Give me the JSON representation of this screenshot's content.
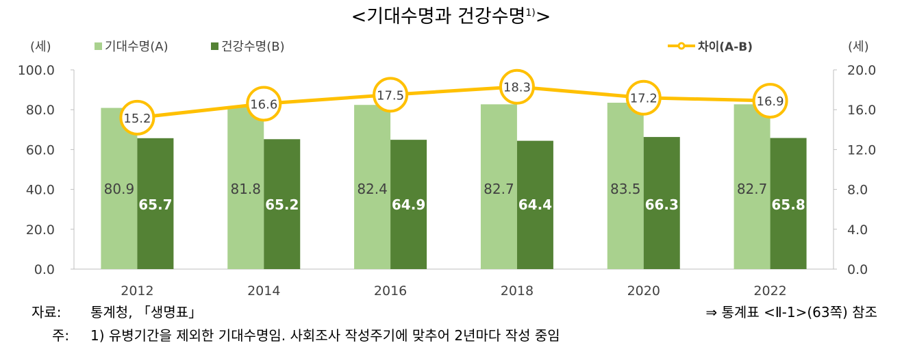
{
  "title": "<기대수명과 건강수명",
  "title_sup": "1)",
  "title_end": ">",
  "left_unit": "(세)",
  "right_unit": "(세)",
  "legend": {
    "a": "기대수명(A)",
    "b": "건강수명(B)",
    "diff": "차이(A-B)"
  },
  "colors": {
    "a": "#a9d18e",
    "b": "#548235",
    "diff": "#ffc000"
  },
  "chart_data": {
    "type": "bar+line",
    "categories": [
      "2012",
      "2014",
      "2016",
      "2018",
      "2020",
      "2022"
    ],
    "series": [
      {
        "name": "기대수명(A)",
        "axis": "left",
        "type": "bar",
        "values": [
          80.9,
          81.8,
          82.4,
          82.7,
          83.5,
          82.7
        ]
      },
      {
        "name": "건강수명(B)",
        "axis": "left",
        "type": "bar",
        "values": [
          65.7,
          65.2,
          64.9,
          64.4,
          66.3,
          65.8
        ]
      },
      {
        "name": "차이(A-B)",
        "axis": "right",
        "type": "line",
        "values": [
          15.2,
          16.6,
          17.5,
          18.3,
          17.2,
          16.9
        ]
      }
    ],
    "ylim_left": [
      0,
      100
    ],
    "yticks_left": [
      "0.0",
      "20.0",
      "40.0",
      "60.0",
      "80.0",
      "100.0"
    ],
    "ylim_right": [
      0,
      20
    ],
    "yticks_right": [
      "0.0",
      "4.0",
      "8.0",
      "12.0",
      "16.0",
      "20.0"
    ],
    "legend_position": "top",
    "grid": false
  },
  "footer": {
    "source_label": "자료:",
    "source": "통계청, 「생명표」",
    "ref": "⇒ 통계표 <Ⅱ-1>(63쪽) 참조",
    "note_label": "주:",
    "note": "1) 유병기간을 제외한 기대수명임. 사회조사 작성주기에 맞추어 2년마다 작성 중임"
  }
}
